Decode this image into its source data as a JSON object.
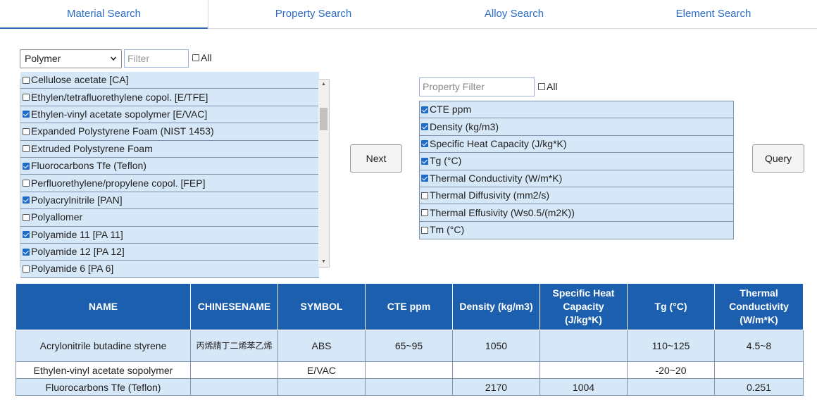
{
  "tabs": [
    {
      "label": "Material Search",
      "active": true
    },
    {
      "label": "Property Search",
      "active": false
    },
    {
      "label": "Alloy Search",
      "active": false
    },
    {
      "label": "Element Search",
      "active": false
    }
  ],
  "material_panel": {
    "category_value": "Polymer",
    "filter_placeholder": "Filter",
    "all_label": "All",
    "items": [
      {
        "label": "Cellulose acetate [CA]",
        "checked": false
      },
      {
        "label": "Ethylen/tetrafluorethylene copol. [E/TFE]",
        "checked": false
      },
      {
        "label": "Ethylen-vinyl acetate sopolymer [E/VAC]",
        "checked": true
      },
      {
        "label": "Expanded Polystyrene Foam (NIST 1453)",
        "checked": false
      },
      {
        "label": "Extruded Polystyrene Foam",
        "checked": false
      },
      {
        "label": "Fluorocarbons Tfe (Teflon)",
        "checked": true
      },
      {
        "label": "Perfluorethylene/propylene copol. [FEP]",
        "checked": false
      },
      {
        "label": "Polyacrylnitrile [PAN]",
        "checked": true
      },
      {
        "label": "Polyallomer",
        "checked": false
      },
      {
        "label": "Polyamide 11 [PA 11]",
        "checked": true
      },
      {
        "label": "Polyamide 12 [PA 12]",
        "checked": true
      },
      {
        "label": "Polyamide 6 [PA 6]",
        "checked": false
      }
    ]
  },
  "next_button": "Next",
  "property_panel": {
    "filter_placeholder": "Property Filter",
    "all_label": "All",
    "items": [
      {
        "label": "CTE ppm",
        "checked": true
      },
      {
        "label": "Density (kg/m3)",
        "checked": true
      },
      {
        "label": "Specific Heat Capacity (J/kg*K)",
        "checked": true
      },
      {
        "label": "Tg (°C)",
        "checked": true
      },
      {
        "label": "Thermal Conductivity (W/m*K)",
        "checked": true
      },
      {
        "label": "Thermal Diffusivity (mm2/s)",
        "checked": false
      },
      {
        "label": "Thermal Effusivity (Ws0.5/(m2K))",
        "checked": false
      },
      {
        "label": "Tm (°C)",
        "checked": false
      }
    ]
  },
  "query_button": "Query",
  "results": {
    "columns": [
      "NAME",
      "CHINESENAME",
      "SYMBOL",
      "CTE ppm",
      "Density (kg/m3)",
      "Specific Heat Capacity (J/kg*K)",
      "Tg (°C)",
      "Thermal Conductivity (W/m*K)"
    ],
    "rows": [
      [
        "Acrylonitrile butadine styrene",
        "丙烯腈丁二烯苯乙烯",
        "ABS",
        "65~95",
        "1050",
        "",
        "110~125",
        "4.5~8"
      ],
      [
        "Ethylen-vinyl acetate sopolymer",
        "",
        "E/VAC",
        "",
        "",
        "",
        "-20~20",
        ""
      ],
      [
        "Fluorocarbons Tfe (Teflon)",
        "",
        "",
        "",
        "2170",
        "1004",
        "",
        "0.251"
      ]
    ]
  },
  "colors": {
    "accent": "#2b6cc4",
    "header_bg": "#1c5fae",
    "row_bg": "#d6e7f7",
    "row_border": "#7e94ac"
  }
}
